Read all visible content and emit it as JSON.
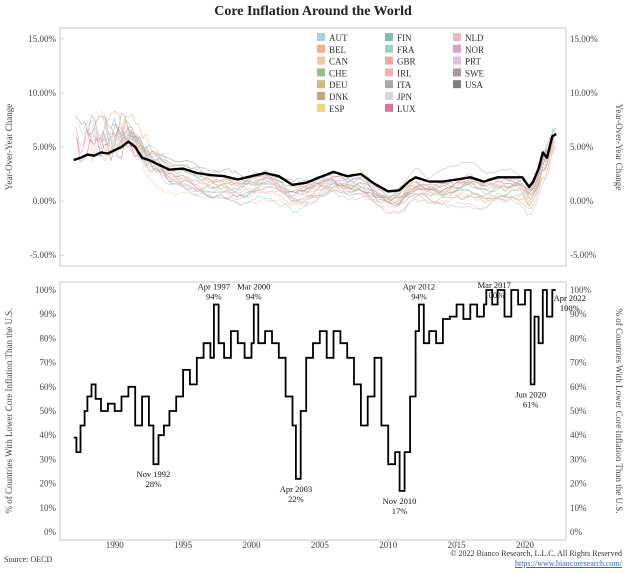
{
  "title": "Core Inflation Around the World",
  "source": "Source: OECD",
  "copyright": "© 2022 Bianco Research, L.L.C. All Rights Reserved",
  "website": "https://www.biancoresearch.com/",
  "chart_data": [
    {
      "type": "line",
      "title": "Core Inflation Around the World",
      "ylabel": "Year-Over-Year Change",
      "ylim": [
        -0.06,
        0.16
      ],
      "yticks": [
        "-5.00%",
        "0.00%",
        "5.00%",
        "10.00%",
        "15.00%"
      ],
      "ytick_values": [
        -0.05,
        0.0,
        0.05,
        0.1,
        0.15
      ],
      "legend": [
        "AUT",
        "BEL",
        "CAN",
        "CHE",
        "DEU",
        "DNK",
        "ESP",
        "FIN",
        "FRA",
        "GBR",
        "IRL",
        "ITA",
        "JPN",
        "LUX",
        "NLD",
        "NOR",
        "PRT",
        "SWE",
        "USA"
      ],
      "legend_colors": [
        "#a9cfe8",
        "#f4b183",
        "#f7c6a3",
        "#8fbf8f",
        "#d9b77a",
        "#c4a57a",
        "#f2d47e",
        "#7fbfb0",
        "#9ad1c8",
        "#f2a7a0",
        "#f5b3a8",
        "#a8a8a8",
        "#d8d8d8",
        "#d9739a",
        "#f0b7c5",
        "#d6a3c7",
        "#e1bfdc",
        "#a89a9a",
        "#7f7f7f"
      ],
      "legend_placement": "top-center",
      "highlight_series": "USA",
      "usa_series": {
        "x": [
          1987.0,
          1987.5,
          1988.0,
          1988.5,
          1989.0,
          1989.5,
          1990.0,
          1990.5,
          1991.0,
          1991.5,
          1992.0,
          1992.5,
          1993.0,
          1993.5,
          1994.0,
          1995.0,
          1996.0,
          1997.0,
          1998.0,
          1999.0,
          2000.0,
          2001.0,
          2002.0,
          2003.0,
          2004.0,
          2005.0,
          2006.0,
          2007.0,
          2008.0,
          2009.0,
          2010.0,
          2010.8,
          2011.5,
          2012.0,
          2013.0,
          2014.0,
          2015.0,
          2016.0,
          2017.0,
          2018.0,
          2019.0,
          2019.8,
          2020.3,
          2020.6,
          2021.0,
          2021.3,
          2021.6,
          2022.0,
          2022.3
        ],
        "y": [
          0.038,
          0.04,
          0.043,
          0.042,
          0.045,
          0.044,
          0.047,
          0.05,
          0.055,
          0.05,
          0.04,
          0.038,
          0.035,
          0.032,
          0.029,
          0.03,
          0.026,
          0.024,
          0.023,
          0.02,
          0.023,
          0.026,
          0.023,
          0.015,
          0.017,
          0.022,
          0.027,
          0.023,
          0.025,
          0.016,
          0.009,
          0.01,
          0.018,
          0.022,
          0.018,
          0.018,
          0.02,
          0.022,
          0.018,
          0.022,
          0.022,
          0.022,
          0.013,
          0.018,
          0.03,
          0.045,
          0.04,
          0.06,
          0.062
        ]
      },
      "xlim": [
        1986.0,
        2023.0
      ]
    },
    {
      "type": "line",
      "ylabel": "% of Countries With Lower Core Inflation Than the U.S.",
      "ylim": [
        0,
        1.0
      ],
      "yticks": [
        "0%",
        "10%",
        "20%",
        "30%",
        "40%",
        "50%",
        "60%",
        "70%",
        "80%",
        "90%",
        "100%"
      ],
      "xticks": [
        "1990",
        "1995",
        "2000",
        "2005",
        "2010",
        "2015",
        "2020"
      ],
      "xtick_values": [
        1990,
        1995,
        2000,
        2005,
        2010,
        2015,
        2020
      ],
      "xlim": [
        1986.0,
        2023.0
      ],
      "x": [
        1987.0,
        1987.2,
        1987.5,
        1987.8,
        1988.0,
        1988.3,
        1988.6,
        1989.0,
        1989.5,
        1990.0,
        1990.5,
        1991.0,
        1991.5,
        1992.0,
        1992.5,
        1992.83,
        1993.2,
        1993.6,
        1994.0,
        1994.5,
        1995.0,
        1995.5,
        1996.0,
        1996.5,
        1997.0,
        1997.25,
        1997.6,
        1998.0,
        1998.5,
        1999.0,
        1999.5,
        2000.0,
        2000.17,
        2000.5,
        2001.0,
        2001.5,
        2002.0,
        2002.5,
        2003.0,
        2003.25,
        2003.6,
        2004.0,
        2004.5,
        2005.0,
        2005.5,
        2006.0,
        2006.5,
        2007.0,
        2007.5,
        2008.0,
        2008.5,
        2009.0,
        2009.5,
        2010.0,
        2010.5,
        2010.83,
        2011.2,
        2011.6,
        2012.0,
        2012.25,
        2012.6,
        2013.0,
        2013.5,
        2014.0,
        2014.5,
        2015.0,
        2015.5,
        2016.0,
        2016.5,
        2017.0,
        2017.17,
        2017.6,
        2018.0,
        2018.5,
        2019.0,
        2019.5,
        2020.0,
        2020.42,
        2020.7,
        2021.0,
        2021.3,
        2021.6,
        2022.0,
        2022.25
      ],
      "y": [
        0.39,
        0.33,
        0.44,
        0.5,
        0.56,
        0.61,
        0.55,
        0.5,
        0.53,
        0.5,
        0.56,
        0.6,
        0.44,
        0.56,
        0.44,
        0.28,
        0.4,
        0.44,
        0.5,
        0.56,
        0.67,
        0.61,
        0.72,
        0.78,
        0.72,
        0.94,
        0.78,
        0.72,
        0.83,
        0.78,
        0.72,
        0.78,
        0.94,
        0.78,
        0.83,
        0.78,
        0.72,
        0.56,
        0.44,
        0.22,
        0.5,
        0.72,
        0.78,
        0.83,
        0.72,
        0.83,
        0.78,
        0.72,
        0.61,
        0.44,
        0.56,
        0.72,
        0.44,
        0.28,
        0.33,
        0.17,
        0.33,
        0.56,
        0.83,
        0.94,
        0.78,
        0.83,
        0.78,
        0.88,
        0.89,
        0.94,
        0.88,
        0.94,
        0.89,
        0.94,
        1.0,
        0.94,
        1.0,
        0.89,
        1.0,
        0.94,
        1.0,
        0.61,
        0.89,
        0.78,
        1.0,
        0.89,
        1.0,
        1.0
      ],
      "annotations": [
        {
          "x": 1992.83,
          "y": 0.28,
          "label": "Nov 1992",
          "value": "28%",
          "pos": "below"
        },
        {
          "x": 1997.25,
          "y": 0.94,
          "label": "Apr 1997",
          "value": "94%",
          "pos": "above"
        },
        {
          "x": 2000.17,
          "y": 0.94,
          "label": "Mar 2000",
          "value": "94%",
          "pos": "above"
        },
        {
          "x": 2003.25,
          "y": 0.22,
          "label": "Apr 2003",
          "value": "22%",
          "pos": "below"
        },
        {
          "x": 2010.83,
          "y": 0.17,
          "label": "Nov 2010",
          "value": "17%",
          "pos": "below"
        },
        {
          "x": 2012.25,
          "y": 0.94,
          "label": "Apr 2012",
          "value": "94%",
          "pos": "above"
        },
        {
          "x": 2017.17,
          "y": 1.0,
          "label": "Mar 2017",
          "value": "100%",
          "pos": "above"
        },
        {
          "x": 2020.42,
          "y": 0.61,
          "label": "Jun 2020",
          "value": "61%",
          "pos": "below"
        },
        {
          "x": 2022.25,
          "y": 1.0,
          "label": "Apr 2022",
          "value": "100%",
          "pos": "right"
        }
      ]
    }
  ]
}
